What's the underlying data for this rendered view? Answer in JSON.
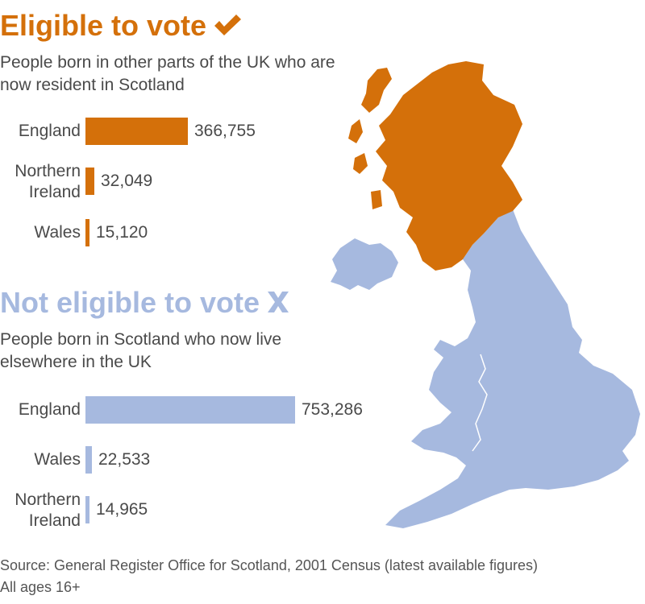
{
  "section_eligible": {
    "title": "Eligible to vote",
    "subtitle": "People born in other parts of the UK who are now resident in Scotland",
    "color": "#d4700a",
    "mark_icon": "check-icon"
  },
  "section_not_eligible": {
    "title": "Not eligible to vote",
    "subtitle": "People born in Scotland who now live elsewhere in the UK",
    "color": "#a6b9df",
    "mark_icon": "x-icon"
  },
  "chart_data": [
    {
      "type": "bar",
      "orientation": "horizontal",
      "title": "Eligible to vote",
      "categories": [
        "England",
        "Northern Ireland",
        "Wales"
      ],
      "values": [
        366755,
        32049,
        15120
      ],
      "value_labels": [
        "366,755",
        "32,049",
        "15,120"
      ],
      "color": "#d4700a"
    },
    {
      "type": "bar",
      "orientation": "horizontal",
      "title": "Not eligible to vote",
      "categories": [
        "England",
        "Wales",
        "Northern Ireland"
      ],
      "values": [
        753286,
        22533,
        14965
      ],
      "value_labels": [
        "753,286",
        "22,533",
        "14,965"
      ],
      "color": "#a6b9df"
    }
  ],
  "map": {
    "scotland_color": "#d4700a",
    "rest_of_uk_color": "#a6b9df"
  },
  "footer": {
    "source": "Source: General Register Office for Scotland, 2001 Census (latest available figures)",
    "note": "All ages 16+"
  }
}
